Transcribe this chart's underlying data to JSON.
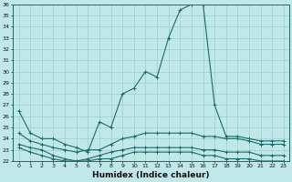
{
  "xlabel": "Humidex (Indice chaleur)",
  "bg_color": "#c0e8e8",
  "line_color": "#1a6b6b",
  "grid_color": "#a0cccc",
  "xlim": [
    -0.5,
    23.5
  ],
  "ylim": [
    22,
    36
  ],
  "yticks": [
    22,
    23,
    24,
    25,
    26,
    27,
    28,
    29,
    30,
    31,
    32,
    33,
    34,
    35,
    36
  ],
  "xticks": [
    0,
    1,
    2,
    3,
    4,
    5,
    6,
    7,
    8,
    9,
    10,
    11,
    12,
    13,
    14,
    15,
    16,
    17,
    18,
    19,
    20,
    21,
    22,
    23
  ],
  "series": [
    {
      "x": [
        0,
        1,
        2,
        3,
        4,
        5,
        6,
        7,
        8,
        9,
        10,
        11,
        12,
        13,
        14,
        15,
        16,
        17,
        18,
        19,
        20,
        21,
        22,
        23
      ],
      "y": [
        26.5,
        24.5,
        24.0,
        24.0,
        23.5,
        23.2,
        22.8,
        25.5,
        25.0,
        28.0,
        28.5,
        30.0,
        29.5,
        33.0,
        35.5,
        36.0,
        36.0,
        27.0,
        24.2,
        24.2,
        24.0,
        23.8,
        23.8,
        23.8
      ]
    },
    {
      "x": [
        0,
        1,
        2,
        3,
        4,
        5,
        6,
        7,
        8,
        9,
        10,
        11,
        12,
        13,
        14,
        15,
        16,
        17,
        18,
        19,
        20,
        21,
        22,
        23
      ],
      "y": [
        24.5,
        23.8,
        23.5,
        23.2,
        23.0,
        22.8,
        23.0,
        23.0,
        23.5,
        24.0,
        24.2,
        24.5,
        24.5,
        24.5,
        24.5,
        24.5,
        24.2,
        24.2,
        24.0,
        24.0,
        23.8,
        23.5,
        23.5,
        23.5
      ]
    },
    {
      "x": [
        0,
        1,
        2,
        3,
        4,
        5,
        6,
        7,
        8,
        9,
        10,
        11,
        12,
        13,
        14,
        15,
        16,
        17,
        18,
        19,
        20,
        21,
        22,
        23
      ],
      "y": [
        23.5,
        23.2,
        23.0,
        22.5,
        22.2,
        22.0,
        22.2,
        22.5,
        22.8,
        23.0,
        23.2,
        23.2,
        23.2,
        23.2,
        23.2,
        23.2,
        23.0,
        23.0,
        22.8,
        22.8,
        22.8,
        22.5,
        22.5,
        22.5
      ]
    },
    {
      "x": [
        0,
        1,
        2,
        3,
        4,
        5,
        6,
        7,
        8,
        9,
        10,
        11,
        12,
        13,
        14,
        15,
        16,
        17,
        18,
        19,
        20,
        21,
        22,
        23
      ],
      "y": [
        23.2,
        22.8,
        22.5,
        22.2,
        22.0,
        22.0,
        22.0,
        22.2,
        22.2,
        22.5,
        22.8,
        22.8,
        22.8,
        22.8,
        22.8,
        22.8,
        22.5,
        22.5,
        22.2,
        22.2,
        22.2,
        22.0,
        22.0,
        22.0
      ]
    }
  ]
}
